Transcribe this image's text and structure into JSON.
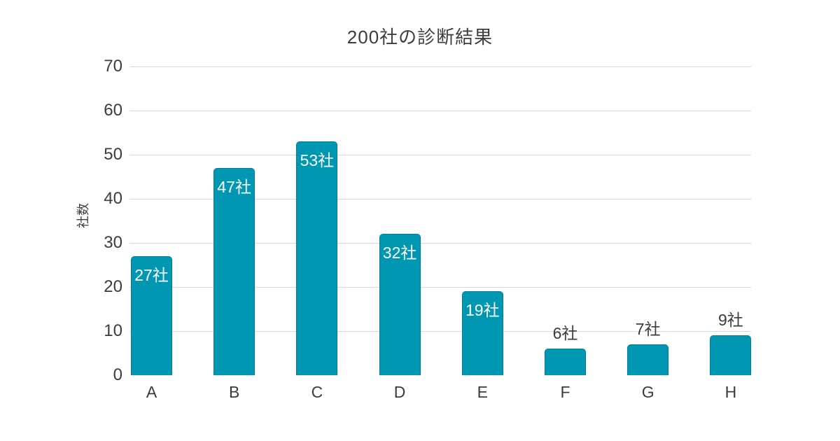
{
  "colors": {
    "background": "#ffffff",
    "bar_fill": "#0097b2",
    "bar_label_inside": "#ffffff",
    "text": "#3c3c3c",
    "gridline": "#d9d9d9"
  },
  "chart_data": {
    "type": "bar",
    "title": "200社の診断結果",
    "xlabel": "",
    "ylabel": "社数",
    "categories": [
      "A",
      "B",
      "C",
      "D",
      "E",
      "F",
      "G",
      "H"
    ],
    "values": [
      27,
      47,
      53,
      32,
      19,
      6,
      7,
      9
    ],
    "value_labels": [
      "27社",
      "47社",
      "53社",
      "32社",
      "19社",
      "6社",
      "7社",
      "9社"
    ],
    "unit_suffix": "社",
    "total": 200,
    "ylim": [
      0,
      70
    ],
    "yticks": [
      0,
      10,
      20,
      30,
      40,
      50,
      60,
      70
    ],
    "grid": "horizontal-only, no line at 0",
    "legend": "none",
    "value_label_placement": "inside top for large bars (A-E), above bar for small bars (F-H)"
  }
}
